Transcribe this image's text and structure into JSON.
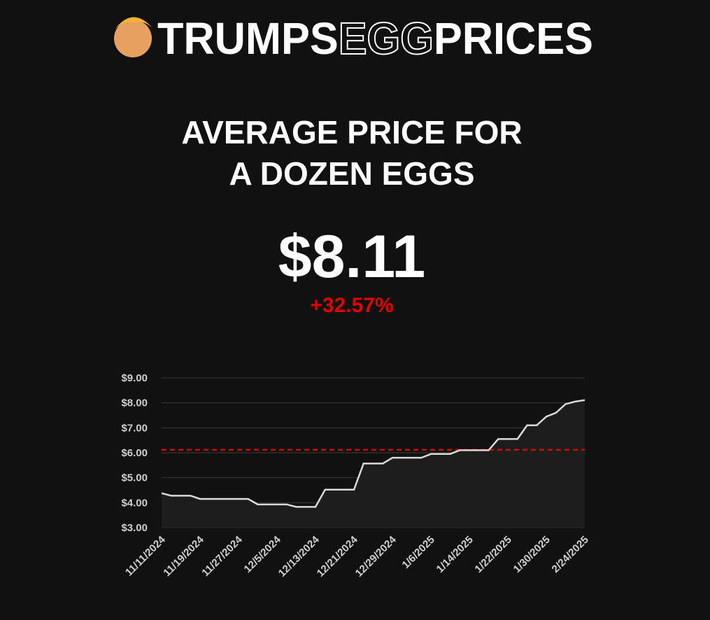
{
  "header": {
    "brand": [
      "TRUMPS",
      "EGG",
      "PRICES"
    ]
  },
  "headline": {
    "title_lines": [
      "AVERAGE PRICE FOR",
      "A DOZEN EGGS"
    ],
    "price": "$8.11",
    "change": "+32.57%"
  },
  "chart_data": {
    "type": "line",
    "categories": [
      "11/11/2024",
      null,
      null,
      null,
      "11/19/2024",
      null,
      null,
      null,
      "11/27/2024",
      null,
      null,
      null,
      "12/5/2024",
      null,
      null,
      null,
      "12/13/2024",
      null,
      null,
      null,
      "12/21/2024",
      null,
      null,
      null,
      "12/29/2024",
      null,
      null,
      null,
      "1/6/2025",
      null,
      null,
      null,
      "1/14/2025",
      null,
      null,
      null,
      "1/22/2025",
      null,
      null,
      null,
      "1/30/2025",
      null,
      null,
      null,
      "2/24/2025"
    ],
    "series": [
      {
        "color": "#d9d9d9",
        "values": [
          4.38,
          4.28,
          4.28,
          4.28,
          4.15,
          4.15,
          4.15,
          4.15,
          4.15,
          4.15,
          3.93,
          3.93,
          3.93,
          3.93,
          3.83,
          3.83,
          3.83,
          4.52,
          4.52,
          4.52,
          4.52,
          5.57,
          5.57,
          5.57,
          5.8,
          5.8,
          5.8,
          5.8,
          5.95,
          5.95,
          5.95,
          6.1,
          6.1,
          6.1,
          6.1,
          6.55,
          6.55,
          6.55,
          7.1,
          7.1,
          7.45,
          7.6,
          7.95,
          8.05,
          8.11
        ]
      }
    ],
    "reference_line": {
      "value": 6.12,
      "color": "#e00000"
    },
    "ylim": [
      3,
      9
    ],
    "yticks": [
      {
        "value": 3,
        "label": "$3.00"
      },
      {
        "value": 4,
        "label": "$4.00"
      },
      {
        "value": 5,
        "label": "$5.00"
      },
      {
        "value": 6,
        "label": "$6.00"
      },
      {
        "value": 7,
        "label": "$7.00"
      },
      {
        "value": 8,
        "label": "$8.00"
      },
      {
        "value": 9,
        "label": "$9.00"
      }
    ],
    "grid": true
  }
}
